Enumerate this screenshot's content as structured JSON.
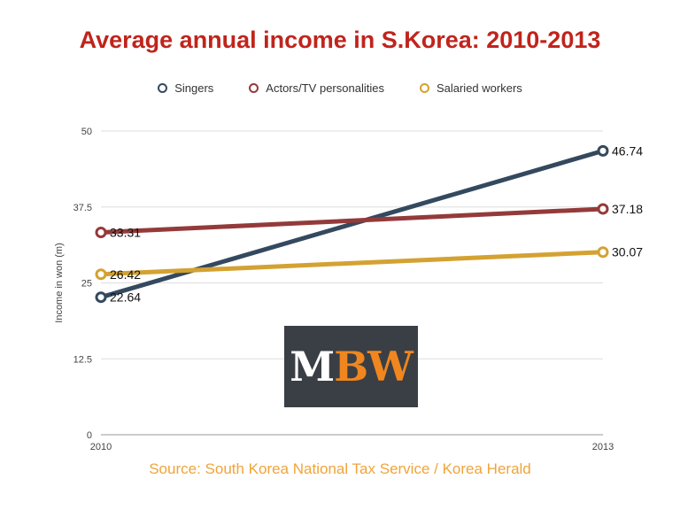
{
  "chart_data": {
    "type": "line",
    "title": "Average annual income in S.Korea: 2010-2013",
    "x": [
      "2010",
      "2013"
    ],
    "series": [
      {
        "name": "Singers",
        "values": [
          22.64,
          46.74
        ],
        "color": "#34495e",
        "labels": [
          "22.64",
          "46.74"
        ]
      },
      {
        "name": "Actors/TV personalities",
        "values": [
          33.31,
          37.18
        ],
        "color": "#943a3a",
        "labels": [
          "33.31",
          "37.18"
        ]
      },
      {
        "name": "Salaried workers",
        "values": [
          26.42,
          30.07
        ],
        "color": "#d4a232",
        "labels": [
          "26.42",
          "30.07"
        ]
      }
    ],
    "ylabel": "Income in won (m)",
    "xlabel": "",
    "ylim": [
      0,
      50
    ],
    "yticks": [
      "0",
      "12.5",
      "25",
      "37.5",
      "50"
    ],
    "grid": true,
    "legend_position": "top"
  },
  "source": "Source: South Korea National Tax Service / Korea Herald",
  "logo": {
    "text_m": "M",
    "text_bw": "BW"
  }
}
